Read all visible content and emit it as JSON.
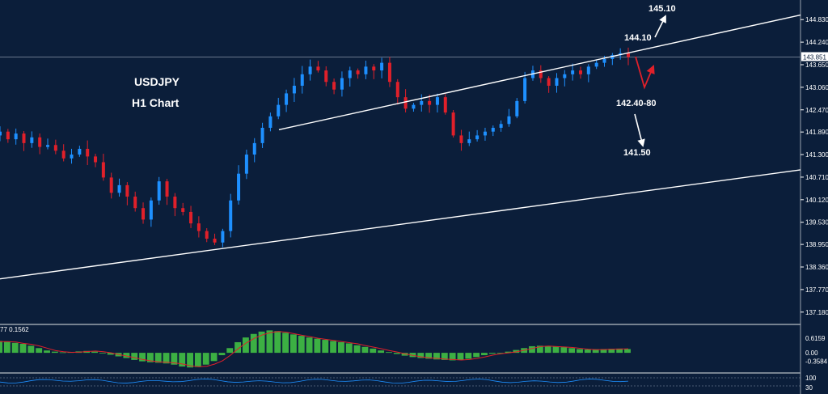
{
  "chart_data": {
    "type": "candlestick",
    "title": "USDJPY",
    "subtitle": "H1 Chart",
    "ylim": [
      136.9,
      145.3
    ],
    "y_ticks": [
      "144.830",
      "144.240",
      "143.650",
      "143.060",
      "142.470",
      "141.890",
      "141.300",
      "140.710",
      "140.120",
      "139.530",
      "138.950",
      "138.360",
      "137.770",
      "137.180"
    ],
    "y_tick_values": [
      144.83,
      144.24,
      143.65,
      143.06,
      142.47,
      141.89,
      141.3,
      140.71,
      140.12,
      139.53,
      138.95,
      138.36,
      137.77,
      137.18
    ],
    "current_price": "143.851",
    "current_price_value": 143.851,
    "annotations": {
      "target_high": "145.10",
      "target_mid": "144.10",
      "support_zone": "142.40-80",
      "target_low": "141.50"
    },
    "colors": {
      "background": "#0b1e3a",
      "bull": "#1e90ff",
      "bear": "#e0202a",
      "trendline": "#ffffff",
      "histogram": "#3cb043",
      "signal": "#e0202a"
    },
    "series": [
      {
        "name": "price",
        "values": [
          141.9,
          141.7,
          141.85,
          141.6,
          141.75,
          141.5,
          141.55,
          141.4,
          141.2,
          141.3,
          141.45,
          141.25,
          141.1,
          140.7,
          140.3,
          140.5,
          140.2,
          139.9,
          139.6,
          140.1,
          140.6,
          140.2,
          139.9,
          139.8,
          139.5,
          139.3,
          139.1,
          139.0,
          139.3,
          140.1,
          140.8,
          141.3,
          141.6,
          142.0,
          142.3,
          142.6,
          142.9,
          143.1,
          143.4,
          143.6,
          143.5,
          143.2,
          143.0,
          143.3,
          143.5,
          143.4,
          143.6,
          143.5,
          143.7,
          143.2,
          142.8,
          142.5,
          142.6,
          142.7,
          142.6,
          142.8,
          142.4,
          141.8,
          141.6,
          141.7,
          141.8,
          141.9,
          142.0,
          142.1,
          142.3,
          142.7,
          143.3,
          143.5,
          143.3,
          143.1,
          143.3,
          143.4,
          143.5,
          143.4,
          143.6,
          143.7,
          143.8,
          143.9,
          143.95,
          143.85
        ]
      }
    ],
    "oscillator": {
      "label": "77 0.1562",
      "ticks": [
        "0.6159",
        "0.00",
        "-0.3584"
      ],
      "tick_values": [
        0.6159,
        0.0,
        -0.3584
      ],
      "ylim": [
        -0.75,
        1.1
      ],
      "histogram": [
        0.5,
        0.48,
        0.42,
        0.38,
        0.3,
        0.2,
        0.1,
        0.05,
        0.02,
        0.03,
        0.06,
        0.08,
        0.05,
        0.0,
        -0.08,
        -0.15,
        -0.22,
        -0.3,
        -0.36,
        -0.4,
        -0.42,
        -0.45,
        -0.5,
        -0.58,
        -0.62,
        -0.6,
        -0.5,
        -0.35,
        -0.1,
        0.2,
        0.45,
        0.65,
        0.8,
        0.9,
        0.95,
        0.92,
        0.85,
        0.78,
        0.72,
        0.65,
        0.6,
        0.55,
        0.5,
        0.45,
        0.4,
        0.32,
        0.25,
        0.18,
        0.1,
        0.03,
        -0.05,
        -0.12,
        -0.18,
        -0.22,
        -0.25,
        -0.28,
        -0.3,
        -0.32,
        -0.3,
        -0.25,
        -0.18,
        -0.1,
        -0.04,
        0.0,
        0.05,
        0.12,
        0.2,
        0.28,
        0.3,
        0.28,
        0.26,
        0.24,
        0.2,
        0.16,
        0.14,
        0.15,
        0.16,
        0.17,
        0.18,
        0.16
      ]
    },
    "bottom_panel": {
      "ticks": [
        "100",
        "30"
      ]
    }
  }
}
